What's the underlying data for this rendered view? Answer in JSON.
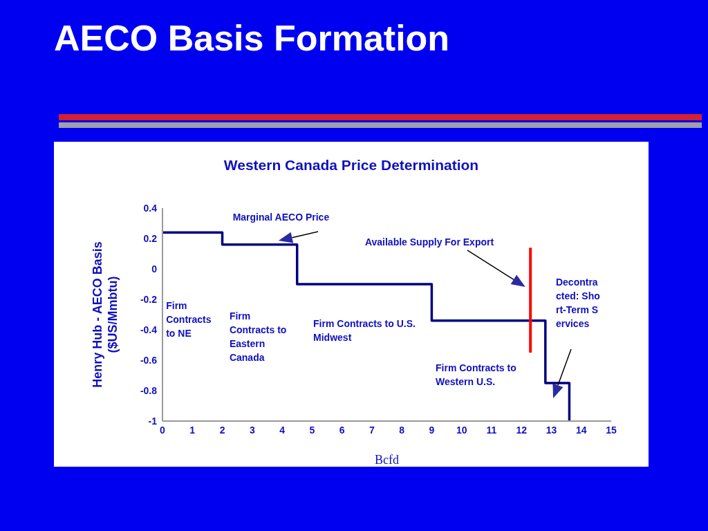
{
  "chart_data": {
    "type": "step",
    "title": "AECO Basis Formation",
    "subtitle": "Western Canada Price Determination",
    "xlabel": "Bcfd",
    "ylabel": "Henry Hub - AECO Basis ($US/Mmbtu)",
    "xlim": [
      0,
      15
    ],
    "xticks": [
      0,
      1,
      2,
      3,
      4,
      5,
      6,
      7,
      8,
      9,
      10,
      11,
      12,
      13,
      14,
      15
    ],
    "ylim": [
      -1,
      0.4
    ],
    "yticks": [
      -1,
      -0.8,
      -0.6,
      -0.4,
      -0.2,
      0,
      0.2,
      0.4
    ],
    "series": [
      {
        "color": "#000080",
        "x": [
          0,
          2,
          4.5,
          9,
          12.8,
          13.6
        ],
        "values": [
          0.24,
          0.16,
          -0.1,
          -0.34,
          -0.75,
          -1
        ]
      },
      {
        "type": "line",
        "color": "#ff0000",
        "x": [
          12.3,
          12.3
        ],
        "values": [
          0.14,
          -0.55
        ]
      }
    ],
    "annotations": [
      "Marginal AECO Price",
      "Available Supply For Export",
      "Decontracted: Short-Term Services",
      "Firm Contracts to NE",
      "Firm Contracts to Eastern Canada",
      "Firm Contracts to U.S. Midwest",
      "Firm Contracts to Western U.S."
    ]
  }
}
